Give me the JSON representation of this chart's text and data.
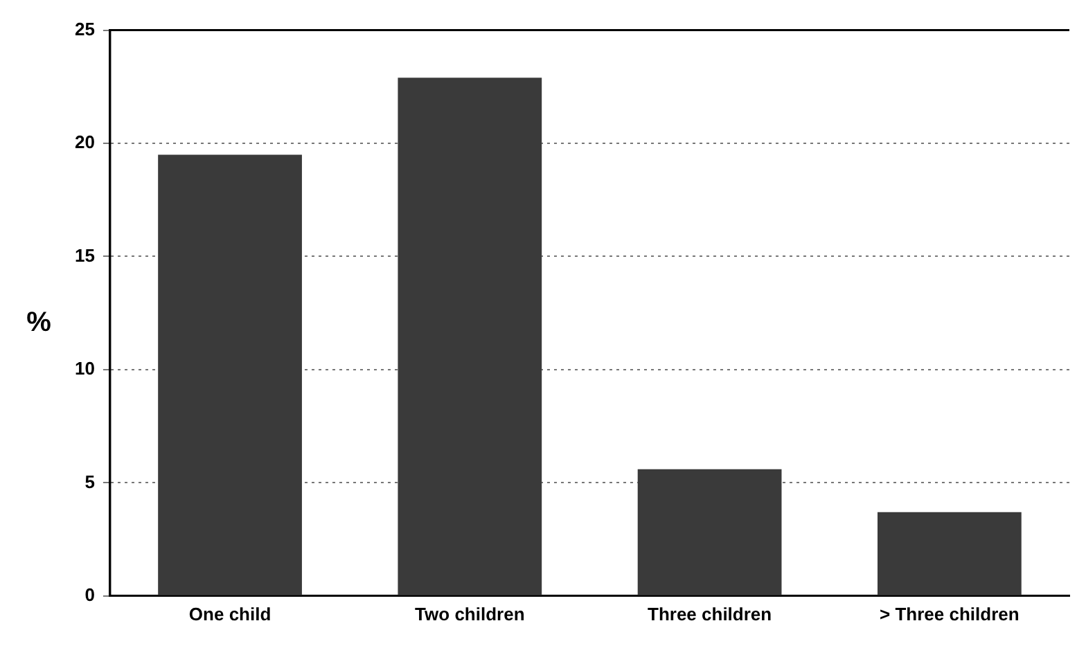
{
  "chart_data": {
    "type": "bar",
    "ylabel": "%",
    "categories": [
      "One child",
      "Two children",
      "Three children",
      "> Three children"
    ],
    "values": [
      19.5,
      22.9,
      5.6,
      3.7
    ],
    "color": "#3a3a3a",
    "ylim": [
      0,
      25
    ],
    "yticks": [
      0,
      5,
      10,
      15,
      20,
      25
    ],
    "grid": "y"
  }
}
